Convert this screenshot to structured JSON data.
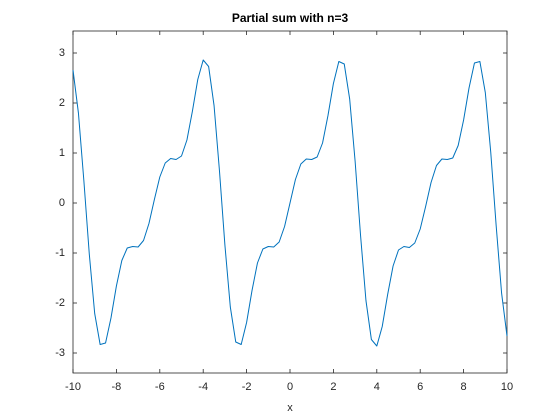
{
  "chart_data": {
    "type": "line",
    "title": "Partial sum with n=3",
    "x_label": "x",
    "x": [
      -10,
      -9.75,
      -9.5,
      -9.25,
      -9,
      -8.75,
      -8.5,
      -8.25,
      -8,
      -7.75,
      -7.5,
      -7.25,
      -7,
      -6.75,
      -6.5,
      -6.25,
      -6,
      -5.75,
      -5.5,
      -5.25,
      -5,
      -4.75,
      -4.5,
      -4.25,
      -4,
      -3.75,
      -3.5,
      -3.25,
      -3,
      -2.75,
      -2.5,
      -2.25,
      -2,
      -1.75,
      -1.5,
      -1.25,
      -1,
      -0.75,
      -0.5,
      -0.25,
      0,
      0.25,
      0.5,
      0.75,
      1,
      1.25,
      1.5,
      1.75,
      2,
      2.25,
      2.5,
      2.75,
      3,
      3.25,
      3.5,
      3.75,
      4,
      4.25,
      4.5,
      4.75,
      5,
      5.25,
      5.5,
      5.75,
      6,
      6.25,
      6.5,
      6.75,
      7,
      7.25,
      7.5,
      7.75,
      8,
      8.25,
      8.5,
      8.75,
      9,
      9.25,
      9.5,
      9.75,
      10
    ],
    "series": [
      {
        "color": "#0072bd",
        "values": [
          2.66,
          1.8,
          0.45,
          -1.02,
          -2.21,
          -2.83,
          -2.8,
          -2.3,
          -1.66,
          -1.15,
          -0.9,
          -0.87,
          -0.88,
          -0.75,
          -0.41,
          0.07,
          0.52,
          0.8,
          0.89,
          0.87,
          0.94,
          1.26,
          1.83,
          2.47,
          2.86,
          2.73,
          1.95,
          0.64,
          -0.84,
          -2.08,
          -2.78,
          -2.83,
          -2.39,
          -1.75,
          -1.2,
          -0.92,
          -0.87,
          -0.88,
          -0.78,
          -0.47,
          0,
          0.47,
          0.78,
          0.88,
          0.87,
          0.92,
          1.2,
          1.75,
          2.39,
          2.83,
          2.78,
          2.08,
          0.84,
          -0.64,
          -1.95,
          -2.73,
          -2.86,
          -2.47,
          -1.83,
          -1.26,
          -0.94,
          -0.87,
          -0.89,
          -0.8,
          -0.52,
          -0.07,
          0.41,
          0.75,
          0.88,
          0.87,
          0.9,
          1.15,
          1.66,
          2.3,
          2.8,
          2.83,
          2.21,
          1.02,
          -0.45,
          -1.8,
          -2.66
        ]
      }
    ],
    "xlim": [
      -10,
      10
    ],
    "xticks": [
      -10,
      -8,
      -6,
      -4,
      -2,
      0,
      2,
      4,
      6,
      8,
      10
    ],
    "ylim": [
      -3.4,
      3.44
    ],
    "yticks": [
      -3,
      -2,
      -1,
      0,
      1,
      2,
      3
    ],
    "grid": false
  }
}
